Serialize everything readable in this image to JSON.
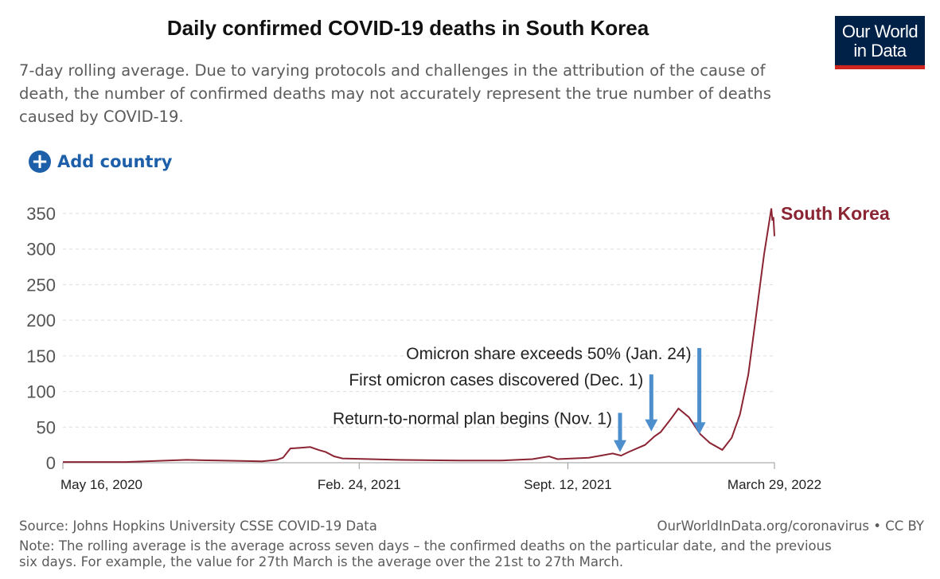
{
  "header": {
    "title": "Daily confirmed COVID-19 deaths in South Korea",
    "subtitle": "7-day rolling average. Due to varying protocols and challenges in the attribution of the cause of death, the number of confirmed deaths may not accurately represent the true number of deaths caused by COVID-19.",
    "logo_line1": "Our World",
    "logo_line2": "in Data",
    "add_country": "Add country",
    "add_icon": "plus-circle-icon"
  },
  "colors": {
    "series": "#8b2433",
    "arrow": "#4d8fcc",
    "grid": "#dddddd",
    "logo_bg": "#002147",
    "logo_bar": "#ce261e",
    "link": "#1d5fa8"
  },
  "chart_data": {
    "type": "line",
    "title": "Daily confirmed COVID-19 deaths in South Korea",
    "x_unit": "days since May 16, 2020",
    "xlim": [
      0,
      682
    ],
    "ylim": [
      0,
      350
    ],
    "grid": true,
    "yticks": [
      0,
      50,
      100,
      150,
      200,
      250,
      300,
      350
    ],
    "xticks": [
      {
        "day": 0,
        "label": "May 16, 2020"
      },
      {
        "day": 284,
        "label": "Feb. 24, 2021"
      },
      {
        "day": 484,
        "label": "Sept. 12, 2021"
      },
      {
        "day": 682,
        "label": "March 29, 2022"
      }
    ],
    "series": [
      {
        "name": "South Korea",
        "points": [
          [
            0,
            1
          ],
          [
            60,
            1
          ],
          [
            119,
            4
          ],
          [
            150,
            3
          ],
          [
            191,
            2
          ],
          [
            205,
            4
          ],
          [
            211,
            7
          ],
          [
            218,
            20
          ],
          [
            228,
            21
          ],
          [
            237,
            22
          ],
          [
            245,
            18
          ],
          [
            252,
            15
          ],
          [
            260,
            9
          ],
          [
            268,
            6
          ],
          [
            321,
            4
          ],
          [
            380,
            3
          ],
          [
            420,
            3
          ],
          [
            450,
            5
          ],
          [
            466,
            9
          ],
          [
            474,
            5
          ],
          [
            504,
            7
          ],
          [
            527,
            13
          ],
          [
            535,
            10
          ],
          [
            542,
            15
          ],
          [
            558,
            25
          ],
          [
            567,
            37
          ],
          [
            573,
            43
          ],
          [
            582,
            60
          ],
          [
            590,
            76
          ],
          [
            600,
            64
          ],
          [
            611,
            40
          ],
          [
            620,
            28
          ],
          [
            632,
            18
          ],
          [
            641,
            35
          ],
          [
            649,
            68
          ],
          [
            657,
            124
          ],
          [
            664,
            202
          ],
          [
            672,
            292
          ],
          [
            679,
            357
          ],
          [
            680,
            340
          ],
          [
            681,
            345
          ],
          [
            682,
            318
          ]
        ]
      }
    ],
    "annotations": [
      {
        "label": "Return-to-normal plan begins (Nov. 1)",
        "day": 534,
        "value": 15,
        "text_value": 70
      },
      {
        "label": "First omicron cases discovered (Dec. 1)",
        "day": 564,
        "value": 44,
        "text_value": 124
      },
      {
        "label": "Omicron share exceeds 50% (Jan. 24)",
        "day": 610,
        "value": 40,
        "text_value": 161
      }
    ]
  },
  "footer": {
    "source": "Source: Johns Hopkins University CSSE COVID-19 Data",
    "license": "OurWorldInData.org/coronavirus • CC BY",
    "note": "Note: The rolling average is the average across seven days – the confirmed deaths on the particular date, and the previous six days. For example, the value for 27th March is the average over the 21st to 27th March."
  }
}
